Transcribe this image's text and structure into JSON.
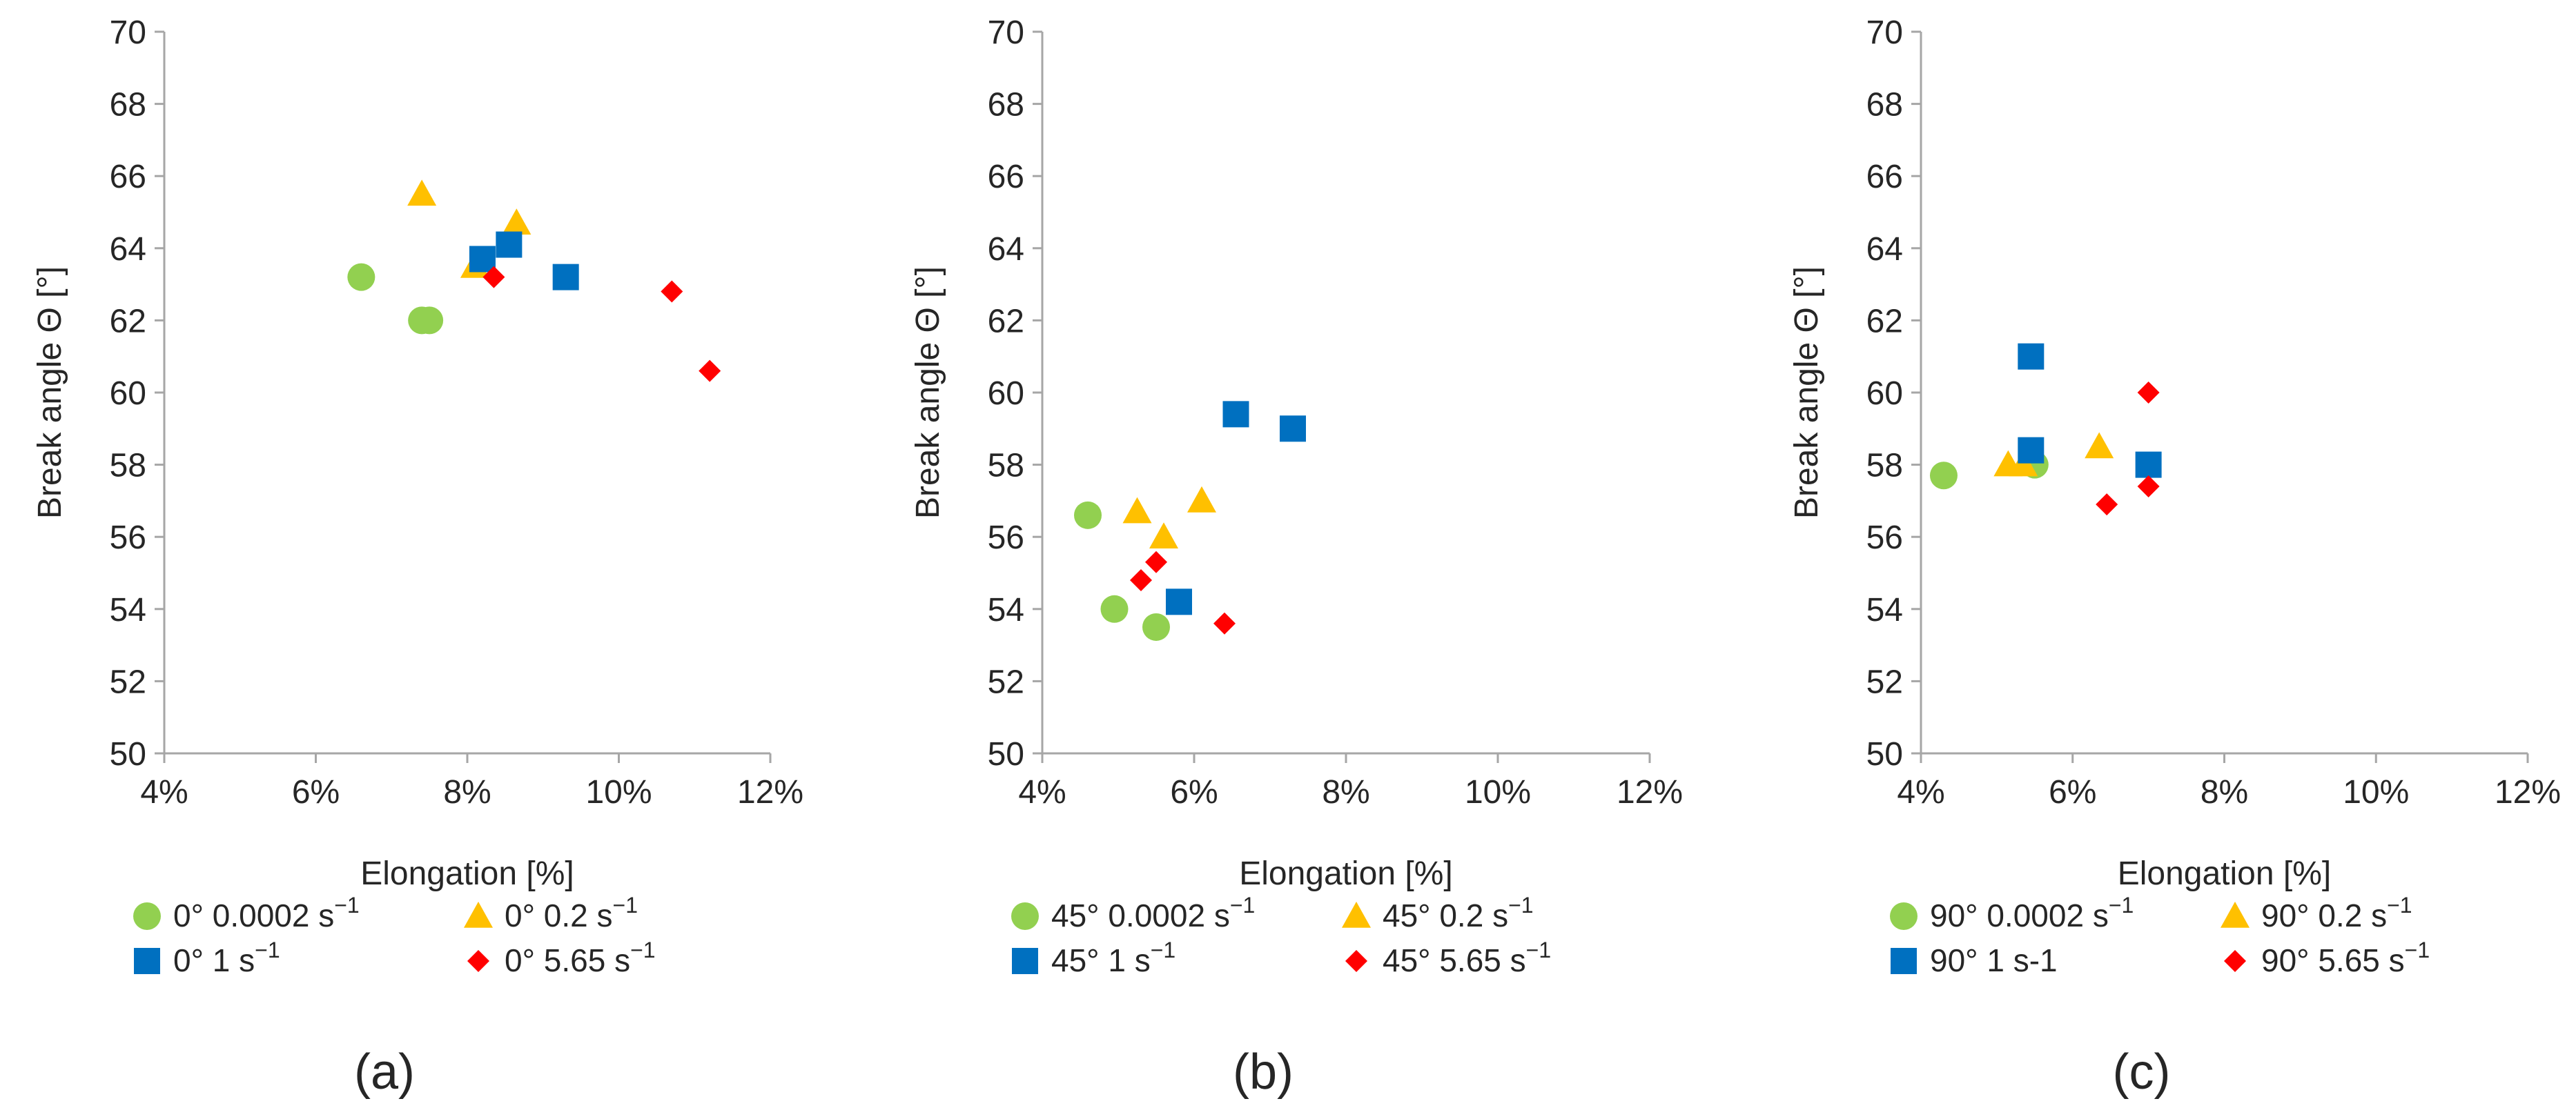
{
  "colors": {
    "green": "#92D050",
    "yellow": "#FFC000",
    "blue": "#0070C0",
    "red": "#FF0000",
    "axis": "#A6A6A6",
    "text": "#262626"
  },
  "chart_data": [
    {
      "type": "scatter",
      "panel_label": "(a)",
      "xlabel": "Elongation [%]",
      "ylabel": "Break angle Θ [°]",
      "xlim": [
        4,
        12
      ],
      "ylim": [
        50,
        70
      ],
      "x_ticks": [
        "4%",
        "6%",
        "8%",
        "10%",
        "12%"
      ],
      "y_ticks": [
        "50",
        "52",
        "54",
        "56",
        "58",
        "60",
        "62",
        "64",
        "66",
        "68",
        "70"
      ],
      "legend": "bottom, two columns",
      "series": [
        {
          "name": "0° 0.0002 s",
          "exponent": "−1",
          "marker": "circle",
          "color_key": "green",
          "points": [
            [
              6.6,
              63.2
            ],
            [
              7.4,
              62.0
            ],
            [
              7.5,
              62.0
            ]
          ]
        },
        {
          "name": "0° 0.2 s",
          "exponent": "−1",
          "marker": "triangle",
          "color_key": "yellow",
          "points": [
            [
              7.4,
              65.5
            ],
            [
              8.1,
              63.5
            ],
            [
              8.65,
              64.7
            ]
          ]
        },
        {
          "name": "0° 1 s",
          "exponent": "−1",
          "marker": "square",
          "color_key": "blue",
          "points": [
            [
              8.2,
              63.7
            ],
            [
              8.55,
              64.1
            ],
            [
              9.3,
              63.2
            ]
          ]
        },
        {
          "name": "0° 5.65 s",
          "exponent": "−1",
          "marker": "diamond",
          "color_key": "red",
          "points": [
            [
              8.35,
              63.2
            ],
            [
              10.7,
              62.8
            ],
            [
              11.2,
              60.6
            ]
          ]
        }
      ]
    },
    {
      "type": "scatter",
      "panel_label": "(b)",
      "xlabel": "Elongation [%]",
      "ylabel": "Break angle Θ [°]",
      "xlim": [
        4,
        12
      ],
      "ylim": [
        50,
        70
      ],
      "x_ticks": [
        "4%",
        "6%",
        "8%",
        "10%",
        "12%"
      ],
      "y_ticks": [
        "50",
        "52",
        "54",
        "56",
        "58",
        "60",
        "62",
        "64",
        "66",
        "68",
        "70"
      ],
      "legend": "bottom, two columns",
      "series": [
        {
          "name": "45° 0.0002 s",
          "exponent": "−1",
          "marker": "circle",
          "color_key": "green",
          "points": [
            [
              4.6,
              56.6
            ],
            [
              4.95,
              54.0
            ],
            [
              5.5,
              53.5
            ]
          ]
        },
        {
          "name": "45° 0.2 s",
          "exponent": "−1",
          "marker": "triangle",
          "color_key": "yellow",
          "points": [
            [
              5.25,
              56.7
            ],
            [
              5.6,
              56.0
            ],
            [
              6.1,
              57.0
            ]
          ]
        },
        {
          "name": "45° 1 s",
          "exponent": "−1",
          "marker": "square",
          "color_key": "blue",
          "points": [
            [
              5.8,
              54.2
            ],
            [
              6.55,
              59.4
            ],
            [
              7.3,
              59.0
            ]
          ]
        },
        {
          "name": "45° 5.65 s",
          "exponent": "−1",
          "marker": "diamond",
          "color_key": "red",
          "points": [
            [
              5.3,
              54.8
            ],
            [
              5.5,
              55.3
            ],
            [
              6.4,
              53.6
            ]
          ]
        }
      ]
    },
    {
      "type": "scatter",
      "panel_label": "(c)",
      "xlabel": "Elongation [%]",
      "ylabel": "Break angle Θ [°]",
      "xlim": [
        4,
        12
      ],
      "ylim": [
        50,
        70
      ],
      "x_ticks": [
        "4%",
        "6%",
        "8%",
        "10%",
        "12%"
      ],
      "y_ticks": [
        "50",
        "52",
        "54",
        "56",
        "58",
        "60",
        "62",
        "64",
        "66",
        "68",
        "70"
      ],
      "legend": "bottom, two columns",
      "series": [
        {
          "name": "90° 0.0002 s",
          "exponent": "−1",
          "marker": "circle",
          "color_key": "green",
          "points": [
            [
              4.3,
              57.7
            ],
            [
              5.5,
              58.0
            ]
          ]
        },
        {
          "name": "90° 0.2 s",
          "exponent": "−1",
          "marker": "triangle",
          "color_key": "yellow",
          "points": [
            [
              5.15,
              58.0
            ],
            [
              5.35,
              58.0
            ],
            [
              6.35,
              58.5
            ]
          ]
        },
        {
          "name": "90° 1 s-1",
          "exponent": "",
          "marker": "square",
          "color_key": "blue",
          "points": [
            [
              5.45,
              61.0
            ],
            [
              5.45,
              58.4
            ],
            [
              7.0,
              58.0
            ]
          ]
        },
        {
          "name": "90° 5.65 s",
          "exponent": "−1",
          "marker": "diamond",
          "color_key": "red",
          "points": [
            [
              7.0,
              60.0
            ],
            [
              6.45,
              56.9
            ],
            [
              7.0,
              57.4
            ]
          ]
        }
      ]
    }
  ]
}
